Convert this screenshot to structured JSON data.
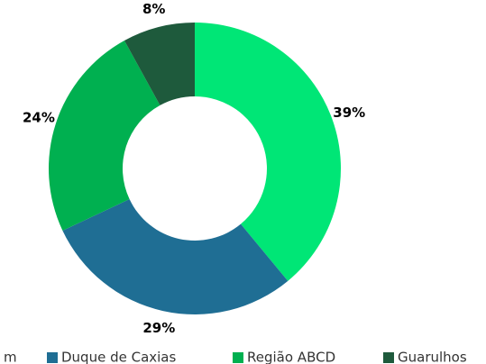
{
  "chart_data": {
    "type": "donut",
    "series": [
      {
        "name": "m",
        "color": "#00e676",
        "values": [
          39
        ]
      },
      {
        "name": "Duque de Caxias",
        "color": "#1f6e94",
        "values": [
          29
        ]
      },
      {
        "name": "Região ABCD",
        "color": "#00b050",
        "values": [
          24
        ]
      },
      {
        "name": "Guarulhos",
        "color": "#1e5a3c",
        "values": [
          8
        ]
      }
    ],
    "value_labels": [
      "39%",
      "29%",
      "24%",
      "8%"
    ],
    "legend": "bottom"
  }
}
